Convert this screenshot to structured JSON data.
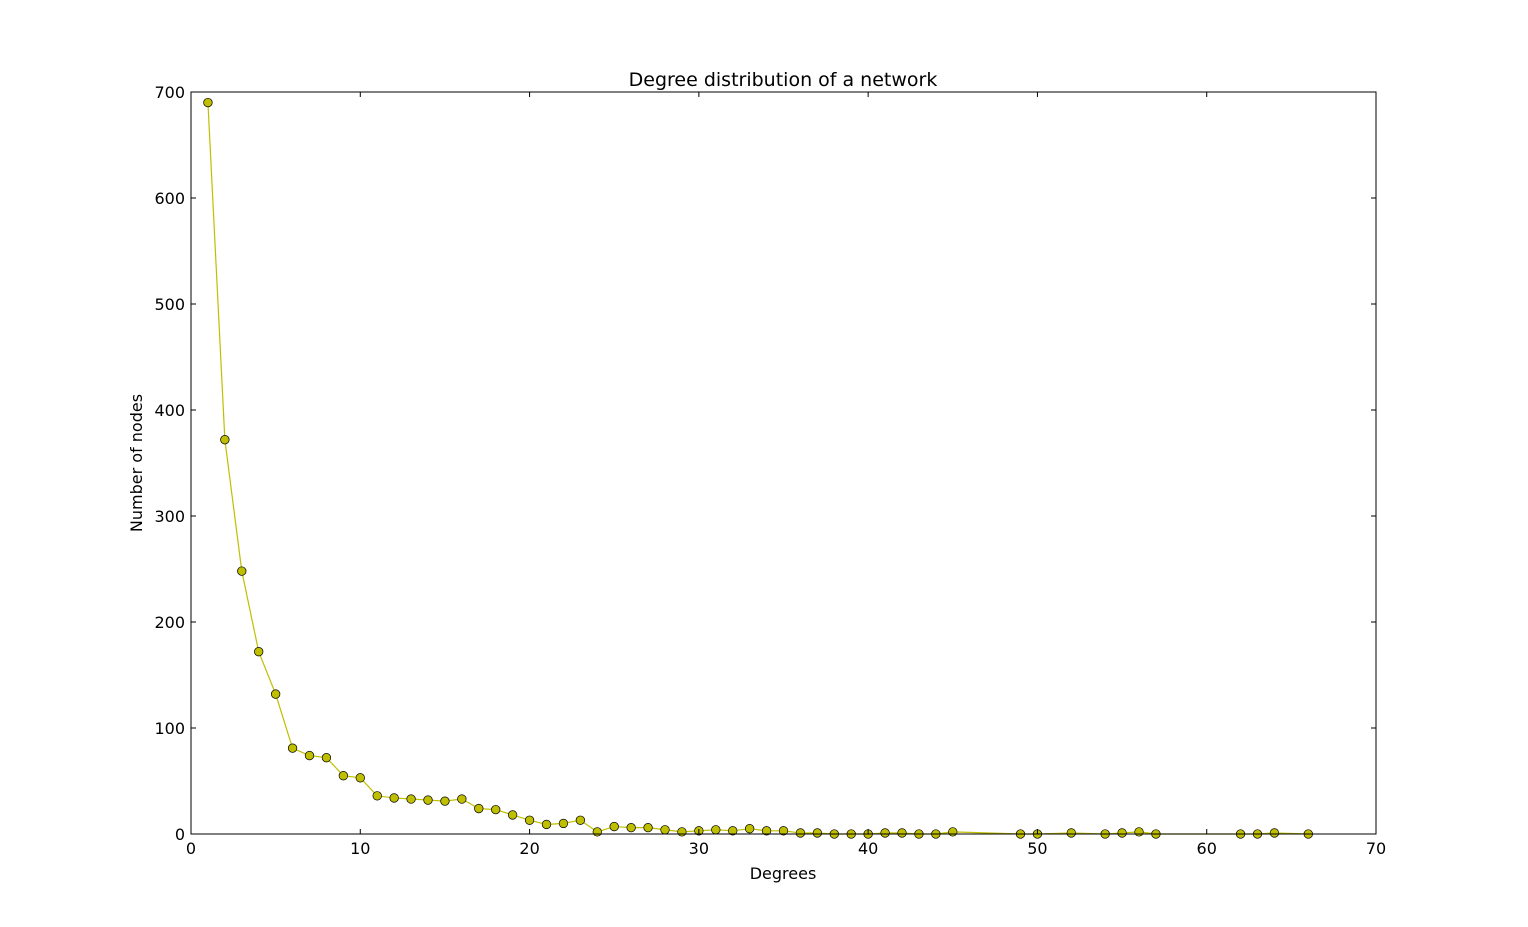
{
  "chart_data": {
    "type": "line",
    "title": "Degree distribution of a network",
    "xlabel": "Degrees",
    "ylabel": "Number of nodes",
    "xlim": [
      0,
      70
    ],
    "ylim": [
      0,
      700
    ],
    "xticks": [
      0,
      10,
      20,
      30,
      40,
      50,
      60,
      70
    ],
    "yticks": [
      0,
      100,
      200,
      300,
      400,
      500,
      600,
      700
    ],
    "grid": false,
    "legend": "none",
    "series": [
      {
        "color": "#bfbf00",
        "marker": "circle",
        "x": [
          1,
          2,
          3,
          4,
          5,
          6,
          7,
          8,
          9,
          10,
          11,
          12,
          13,
          14,
          15,
          16,
          17,
          18,
          19,
          20,
          21,
          22,
          23,
          24,
          25,
          26,
          27,
          28,
          29,
          30,
          31,
          32,
          33,
          34,
          35,
          36,
          37,
          38,
          39,
          40,
          41,
          42,
          43,
          44,
          45,
          49,
          50,
          52,
          54,
          55,
          56,
          57,
          62,
          63,
          64,
          66
        ],
        "y": [
          690,
          372,
          248,
          172,
          132,
          81,
          74,
          72,
          55,
          53,
          36,
          34,
          33,
          32,
          31,
          33,
          24,
          23,
          18,
          13,
          9,
          10,
          13,
          2,
          7,
          6,
          6,
          4,
          2,
          3,
          4,
          3,
          5,
          3,
          3,
          1,
          1,
          0,
          0,
          0,
          1,
          1,
          0,
          0,
          2,
          0,
          0,
          1,
          0,
          1,
          2,
          0,
          0,
          0,
          1,
          0
        ]
      }
    ]
  }
}
